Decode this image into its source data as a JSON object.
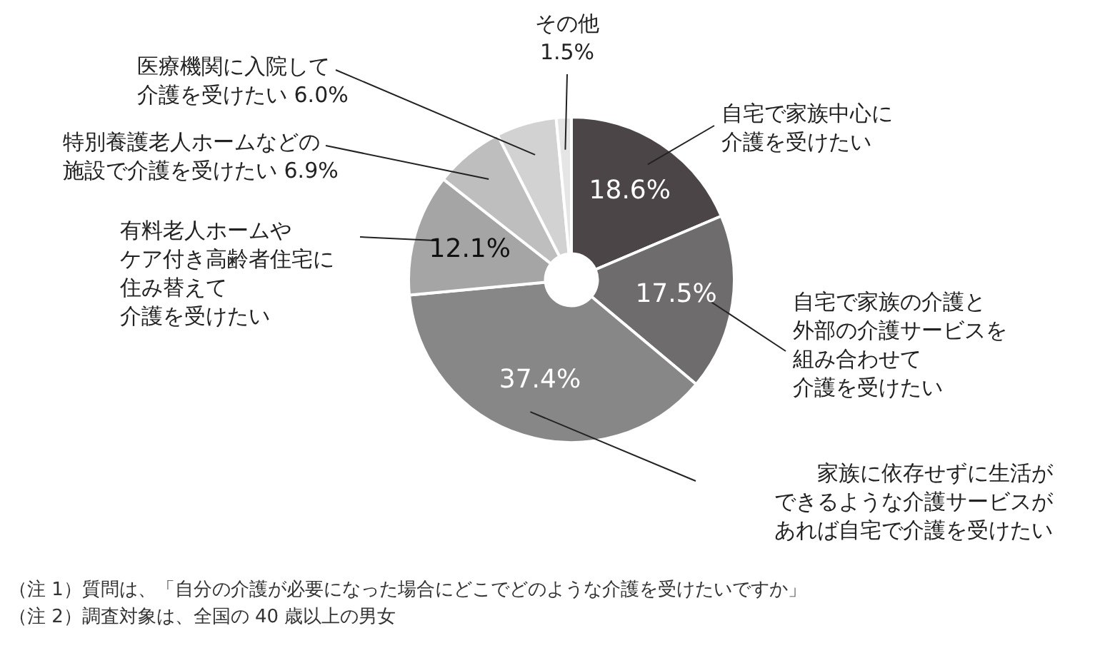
{
  "chart_data": {
    "type": "donut",
    "categories": [
      "自宅で家族中心に介護を受けたい",
      "自宅で家族の介護と外部の介護サービスを組み合わせて介護を受けたい",
      "家族に依存せずに生活ができるような介護サービスがあれば自宅で介護を受けたい",
      "有料老人ホームやケア付き高齢者住宅に住み替えて介護を受けたい",
      "特別養護老人ホームなどの施設で介護を受けたい",
      "医療機関に入院して介護を受けたい",
      "その他"
    ],
    "values": [
      18.6,
      17.5,
      37.4,
      12.1,
      6.9,
      6.0,
      1.5
    ],
    "value_labels": [
      "18.6%",
      "17.5%",
      "37.4%",
      "12.1%",
      "6.9%",
      "6.0%",
      "1.5%"
    ],
    "colors": [
      "#4b4547",
      "#6e6c6d",
      "#888788",
      "#a6a5a6",
      "#bfbebf",
      "#d3d2d3",
      "#e6e5e6"
    ],
    "legend": false,
    "annotations": [
      "（注 1）質問は、「自分の介護が必要になった場合にどこでどのような介護を受けたいですか」",
      "（注 2）調査対象は、全国の 40 歳以上の男女"
    ]
  }
}
